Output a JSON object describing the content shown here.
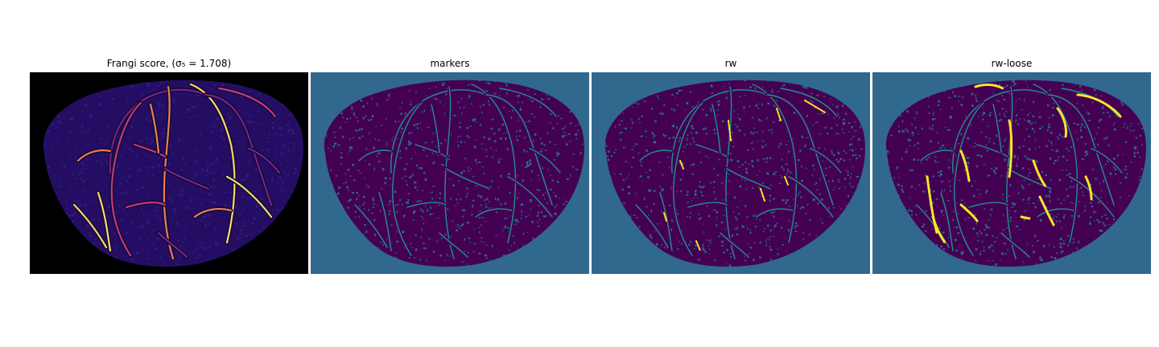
{
  "figure": {
    "panels": [
      {
        "id": "frangi",
        "title": "Frangi score, (σ₅ = 1.708)",
        "background": "#000000",
        "tissue": "#240e63",
        "vessel_colors": [
          "#7b2382",
          "#c43c75",
          "#f07f4f",
          "#fcd96a"
        ]
      },
      {
        "id": "markers",
        "title": "markers",
        "background": "#31688e",
        "tissue": "#440154",
        "marker": "#21918c"
      },
      {
        "id": "rw",
        "title": "rw",
        "background": "#31688e",
        "tissue": "#440154",
        "vessel": "#21918c",
        "highlight": "#fde725"
      },
      {
        "id": "rw-loose",
        "title": "rw-loose",
        "background": "#31688e",
        "tissue": "#440154",
        "vessel": "#21918c",
        "highlight": "#fde725"
      }
    ]
  }
}
